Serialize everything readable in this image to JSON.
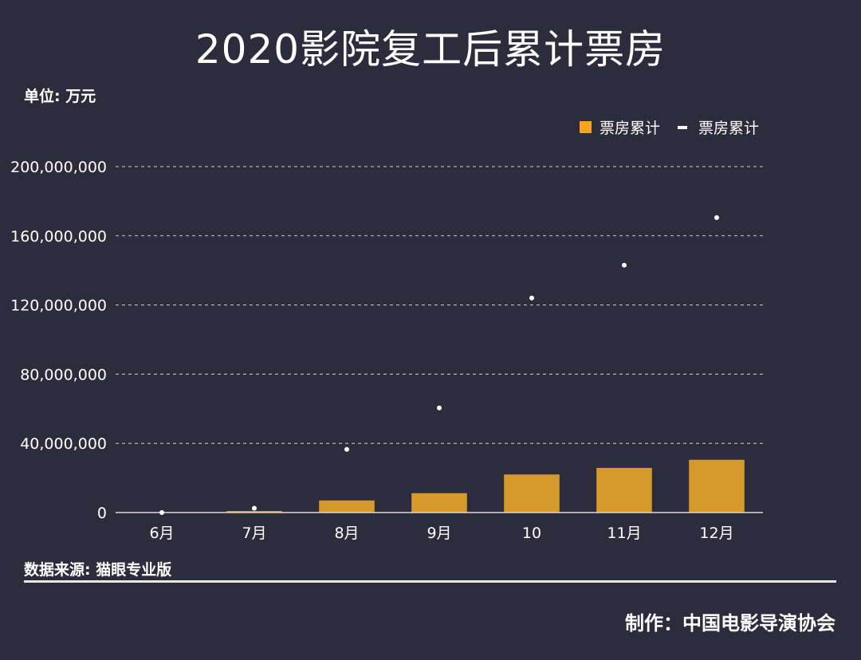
{
  "chart_data": {
    "type": "bar",
    "title": "2020影院复工后累计票房",
    "unit_label": "单位: 万元",
    "categories": [
      "6月",
      "7月",
      "8月",
      "9月",
      "10",
      "11月",
      "12月"
    ],
    "series": [
      {
        "name": "票房累计",
        "kind": "bar",
        "color": "#f4a522",
        "values": [
          0,
          900000,
          7000000,
          11200000,
          22000000,
          25800000,
          30500000
        ]
      },
      {
        "name": "票房累计",
        "kind": "point",
        "color": "#ffffff",
        "values": [
          0,
          2500000,
          36500000,
          60500000,
          124000000,
          143000000,
          170500000
        ]
      }
    ],
    "yticks": [
      "0",
      "40,000,000",
      "80,000,000",
      "120,000,000",
      "160,000,000",
      "200,000,000"
    ],
    "ylim": [
      0,
      200000000
    ],
    "grid": true,
    "legend_position": "top-right"
  },
  "footer": {
    "source": "数据来源: 猫眼专业版",
    "credit": "制作：中国电影导演协会"
  }
}
